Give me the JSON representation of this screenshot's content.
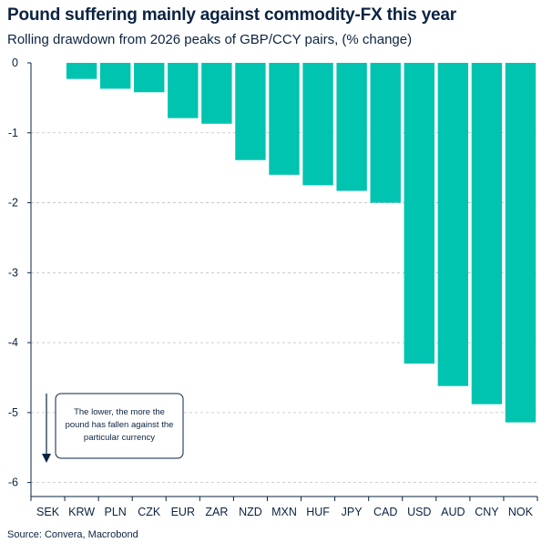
{
  "title": "Pound suffering mainly against commodity-FX this year",
  "subtitle": "Rolling drawdown from 2026 peaks of GBP/CCY pairs, (% change)",
  "source": "Source: Convera, Macrobond",
  "annotation": {
    "lines": [
      "The lower, the more the",
      "pound has fallen against the",
      "particular currency"
    ]
  },
  "colors": {
    "bar": "#00c3b0",
    "text": "#0b2341",
    "grid": "#bfbfbf"
  },
  "chart_data": {
    "type": "bar",
    "title": "Pound suffering mainly against commodity-FX this year",
    "subtitle": "Rolling drawdown from 2026 peaks of GBP/CCY pairs, (% change)",
    "categories": [
      "SEK",
      "KRW",
      "PLN",
      "CZK",
      "EUR",
      "ZAR",
      "NZD",
      "MXN",
      "HUF",
      "JPY",
      "CAD",
      "USD",
      "AUD",
      "CNY",
      "NOK"
    ],
    "values": [
      0,
      -0.23,
      -0.37,
      -0.42,
      -0.79,
      -0.87,
      -1.39,
      -1.6,
      -1.75,
      -1.83,
      -2.0,
      -4.3,
      -4.62,
      -4.88,
      -5.14
    ],
    "ylim": [
      -6.2,
      0
    ],
    "yticks": [
      0,
      -1,
      -2,
      -3,
      -4,
      -5,
      -6
    ],
    "ytick_labels": [
      "0",
      "-1",
      "-2",
      "-3",
      "-4",
      "-5",
      "-6"
    ],
    "grid": "horizontal dashed",
    "legend": "none"
  }
}
